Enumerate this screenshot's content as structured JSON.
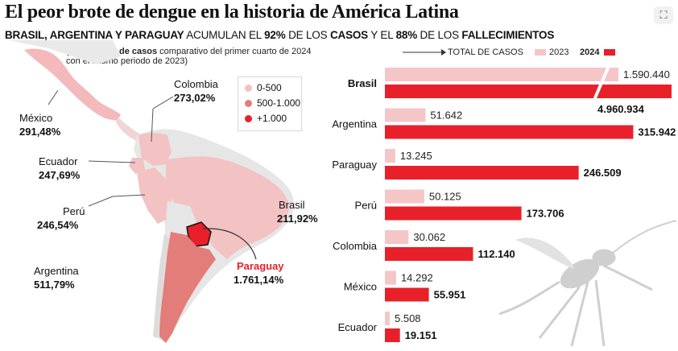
{
  "title": "El peor brote de dengue en la historia de América Latina",
  "subtitle": {
    "p1": "BRASIL, ARGENTINA Y PARAGUAY",
    "p2": " ACUMULAN EL ",
    "p3": "92%",
    "p4": " DE LOS ",
    "p5": "CASOS",
    "p6": " Y EL ",
    "p7": "88%",
    "p8": " DE LOS ",
    "p9": "FALLECIMIENTOS"
  },
  "note": {
    "bold": "Incremento de casos",
    "line1_rest": " comparativo del primer cuarto de 2024",
    "line2": "con el mismo periodo de 2023)",
    "open": "("
  },
  "legend": {
    "total": "TOTAL DE CASOS",
    "y2023": "2023",
    "y2024": "2024",
    "color2023": "#f4c6c8",
    "color2024": "#e8202a"
  },
  "ranges": [
    {
      "label": "0-500",
      "color": "#f5c0c2"
    },
    {
      "label": "500-1.000",
      "color": "#e27d7a"
    },
    {
      "label": "+1.000",
      "color": "#e8202a"
    }
  ],
  "map_labels": {
    "mexico": {
      "name": "México",
      "pct": "291,48%"
    },
    "colombia": {
      "name": "Colombia",
      "pct": "273,02%"
    },
    "ecuador": {
      "name": "Ecuador",
      "pct": "247,69%"
    },
    "peru": {
      "name": "Perú",
      "pct": "246,54%"
    },
    "brasil": {
      "name": "Brasil",
      "pct": "211,92%"
    },
    "argentina": {
      "name": "Argentina",
      "pct": "511,79%"
    },
    "paraguay": {
      "name": "Paraguay",
      "pct": "1.761,14%"
    }
  },
  "chart_data": {
    "type": "bar",
    "orientation": "horizontal",
    "categories": [
      "Brasil",
      "Argentina",
      "Paraguay",
      "Perú",
      "Colombia",
      "México",
      "Ecuador"
    ],
    "series": [
      {
        "name": "2023",
        "values": [
          1590440,
          51642,
          13245,
          50125,
          30062,
          14292,
          5508
        ],
        "labels": [
          "1.590.440",
          "51.642",
          "13.245",
          "50.125",
          "30.062",
          "14.292",
          "5.508"
        ]
      },
      {
        "name": "2024",
        "values": [
          4960934,
          315942,
          246509,
          173706,
          112140,
          55951,
          19151
        ],
        "labels": [
          "4.960.934",
          "315.942",
          "246.509",
          "173.706",
          "112.140",
          "55.951",
          "19.151"
        ]
      }
    ],
    "title": "TOTAL DE CASOS",
    "broken_axis": "Brasil bars truncated"
  }
}
